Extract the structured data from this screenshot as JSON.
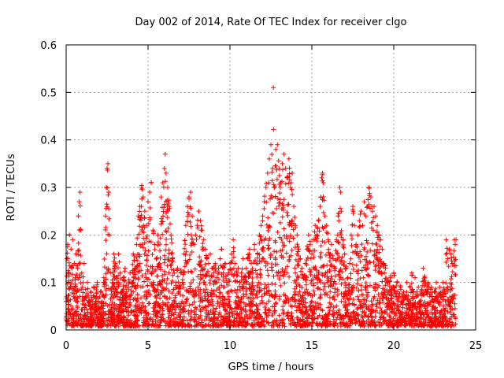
{
  "chart_data": {
    "type": "scatter",
    "title": "Day 002 of 2014, Rate Of TEC Index for receiver clgo",
    "xlabel": "GPS time / hours",
    "ylabel": "ROTI / TECUs",
    "xlim": [
      0,
      25
    ],
    "ylim": [
      0,
      0.6
    ],
    "x_ticks": [
      0,
      5,
      10,
      15,
      20,
      25
    ],
    "x_tick_labels": [
      "0",
      "5",
      "10",
      "15",
      "20",
      "25"
    ],
    "y_ticks": [
      0,
      0.1,
      0.2,
      0.3,
      0.4,
      0.5,
      0.6
    ],
    "y_tick_labels": [
      "0",
      "0.1",
      "0.2",
      "0.3",
      "0.4",
      "0.5",
      "0.6"
    ],
    "grid": true,
    "marker": "+",
    "color": "#ff0000",
    "series": [
      {
        "name": "ROTI",
        "points": [
          [
            0.0,
            0.06
          ],
          [
            0.05,
            0.15
          ],
          [
            0.1,
            0.18
          ],
          [
            0.15,
            0.12
          ],
          [
            0.2,
            0.2
          ],
          [
            0.25,
            0.09
          ],
          [
            0.3,
            0.17
          ],
          [
            0.35,
            0.13
          ],
          [
            0.4,
            0.19
          ],
          [
            0.45,
            0.07
          ],
          [
            0.5,
            0.14
          ],
          [
            0.55,
            0.11
          ],
          [
            0.6,
            0.16
          ],
          [
            0.65,
            0.08
          ],
          [
            0.7,
            0.13
          ],
          [
            0.75,
            0.24
          ],
          [
            0.8,
            0.27
          ],
          [
            0.85,
            0.29
          ],
          [
            0.9,
            0.21
          ],
          [
            0.95,
            0.12
          ],
          [
            1.0,
            0.09
          ],
          [
            1.1,
            0.14
          ],
          [
            1.2,
            0.07
          ],
          [
            1.3,
            0.1
          ],
          [
            1.4,
            0.06
          ],
          [
            1.5,
            0.08
          ],
          [
            1.6,
            0.05
          ],
          [
            1.7,
            0.09
          ],
          [
            1.8,
            0.06
          ],
          [
            1.9,
            0.1
          ],
          [
            2.0,
            0.05
          ],
          [
            2.1,
            0.08
          ],
          [
            2.2,
            0.06
          ],
          [
            2.3,
            0.11
          ],
          [
            2.4,
            0.24
          ],
          [
            2.45,
            0.3
          ],
          [
            2.5,
            0.34
          ],
          [
            2.55,
            0.35
          ],
          [
            2.6,
            0.29
          ],
          [
            2.65,
            0.2
          ],
          [
            2.7,
            0.12
          ],
          [
            2.8,
            0.09
          ],
          [
            2.9,
            0.16
          ],
          [
            3.0,
            0.14
          ],
          [
            3.1,
            0.1
          ],
          [
            3.2,
            0.16
          ],
          [
            3.3,
            0.12
          ],
          [
            3.4,
            0.08
          ],
          [
            3.5,
            0.11
          ],
          [
            3.6,
            0.13
          ],
          [
            3.7,
            0.07
          ],
          [
            3.8,
            0.09
          ],
          [
            3.9,
            0.12
          ],
          [
            4.0,
            0.1
          ],
          [
            4.1,
            0.16
          ],
          [
            4.2,
            0.13
          ],
          [
            4.3,
            0.18
          ],
          [
            4.4,
            0.24
          ],
          [
            4.5,
            0.26
          ],
          [
            4.6,
            0.3
          ],
          [
            4.7,
            0.28
          ],
          [
            4.8,
            0.25
          ],
          [
            4.9,
            0.22
          ],
          [
            5.0,
            0.27
          ],
          [
            5.1,
            0.29
          ],
          [
            5.2,
            0.31
          ],
          [
            5.3,
            0.21
          ],
          [
            5.4,
            0.18
          ],
          [
            5.5,
            0.15
          ],
          [
            5.6,
            0.2
          ],
          [
            5.7,
            0.14
          ],
          [
            5.8,
            0.28
          ],
          [
            5.9,
            0.31
          ],
          [
            6.0,
            0.34
          ],
          [
            6.05,
            0.37
          ],
          [
            6.1,
            0.33
          ],
          [
            6.2,
            0.3
          ],
          [
            6.3,
            0.26
          ],
          [
            6.4,
            0.2
          ],
          [
            6.5,
            0.15
          ],
          [
            6.6,
            0.12
          ],
          [
            6.7,
            0.1
          ],
          [
            6.8,
            0.13
          ],
          [
            6.9,
            0.09
          ],
          [
            7.0,
            0.12
          ],
          [
            7.1,
            0.1
          ],
          [
            7.2,
            0.16
          ],
          [
            7.3,
            0.22
          ],
          [
            7.4,
            0.26
          ],
          [
            7.5,
            0.28
          ],
          [
            7.6,
            0.29
          ],
          [
            7.7,
            0.24
          ],
          [
            7.8,
            0.18
          ],
          [
            7.9,
            0.2
          ],
          [
            8.0,
            0.22
          ],
          [
            8.1,
            0.25
          ],
          [
            8.2,
            0.23
          ],
          [
            8.3,
            0.21
          ],
          [
            8.4,
            0.19
          ],
          [
            8.5,
            0.17
          ],
          [
            8.6,
            0.15
          ],
          [
            8.7,
            0.14
          ],
          [
            8.8,
            0.16
          ],
          [
            8.9,
            0.13
          ],
          [
            9.0,
            0.12
          ],
          [
            9.1,
            0.14
          ],
          [
            9.2,
            0.11
          ],
          [
            9.3,
            0.13
          ],
          [
            9.4,
            0.15
          ],
          [
            9.5,
            0.17
          ],
          [
            9.6,
            0.12
          ],
          [
            9.7,
            0.14
          ],
          [
            9.8,
            0.1
          ],
          [
            9.9,
            0.12
          ],
          [
            10.0,
            0.14
          ],
          [
            10.1,
            0.16
          ],
          [
            10.2,
            0.19
          ],
          [
            10.3,
            0.14
          ],
          [
            10.4,
            0.12
          ],
          [
            10.5,
            0.13
          ],
          [
            10.6,
            0.1
          ],
          [
            10.7,
            0.12
          ],
          [
            10.8,
            0.15
          ],
          [
            10.9,
            0.11
          ],
          [
            11.0,
            0.13
          ],
          [
            11.1,
            0.15
          ],
          [
            11.2,
            0.17
          ],
          [
            11.3,
            0.14
          ],
          [
            11.4,
            0.12
          ],
          [
            11.5,
            0.18
          ],
          [
            11.6,
            0.14
          ],
          [
            11.7,
            0.16
          ],
          [
            11.8,
            0.2
          ],
          [
            11.9,
            0.22
          ],
          [
            12.0,
            0.24
          ],
          [
            12.1,
            0.27
          ],
          [
            12.2,
            0.3
          ],
          [
            12.3,
            0.33
          ],
          [
            12.4,
            0.36
          ],
          [
            12.5,
            0.39
          ],
          [
            12.6,
            0.34
          ],
          [
            12.65,
            0.51
          ],
          [
            12.7,
            0.3
          ],
          [
            12.8,
            0.38
          ],
          [
            12.9,
            0.39
          ],
          [
            13.0,
            0.34
          ],
          [
            13.1,
            0.31
          ],
          [
            13.2,
            0.35
          ],
          [
            13.3,
            0.37
          ],
          [
            13.4,
            0.34
          ],
          [
            13.5,
            0.32
          ],
          [
            13.6,
            0.36
          ],
          [
            13.7,
            0.3
          ],
          [
            13.8,
            0.33
          ],
          [
            13.9,
            0.26
          ],
          [
            14.0,
            0.22
          ],
          [
            14.1,
            0.2
          ],
          [
            14.2,
            0.17
          ],
          [
            14.3,
            0.15
          ],
          [
            14.4,
            0.13
          ],
          [
            14.5,
            0.11
          ],
          [
            14.6,
            0.14
          ],
          [
            14.7,
            0.17
          ],
          [
            14.8,
            0.2
          ],
          [
            14.9,
            0.18
          ],
          [
            15.0,
            0.16
          ],
          [
            15.1,
            0.19
          ],
          [
            15.2,
            0.22
          ],
          [
            15.3,
            0.2
          ],
          [
            15.4,
            0.23
          ],
          [
            15.5,
            0.26
          ],
          [
            15.6,
            0.32
          ],
          [
            15.65,
            0.33
          ],
          [
            15.7,
            0.31
          ],
          [
            15.8,
            0.24
          ],
          [
            15.9,
            0.22
          ],
          [
            16.0,
            0.19
          ],
          [
            16.1,
            0.16
          ],
          [
            16.2,
            0.18
          ],
          [
            16.3,
            0.15
          ],
          [
            16.4,
            0.13
          ],
          [
            16.5,
            0.19
          ],
          [
            16.6,
            0.24
          ],
          [
            16.7,
            0.3
          ],
          [
            16.75,
            0.29
          ],
          [
            16.8,
            0.25
          ],
          [
            16.9,
            0.19
          ],
          [
            17.0,
            0.16
          ],
          [
            17.1,
            0.13
          ],
          [
            17.2,
            0.11
          ],
          [
            17.3,
            0.14
          ],
          [
            17.4,
            0.2
          ],
          [
            17.5,
            0.26
          ],
          [
            17.6,
            0.22
          ],
          [
            17.7,
            0.18
          ],
          [
            17.8,
            0.2
          ],
          [
            17.9,
            0.23
          ],
          [
            18.0,
            0.25
          ],
          [
            18.1,
            0.22
          ],
          [
            18.2,
            0.27
          ],
          [
            18.3,
            0.24
          ],
          [
            18.4,
            0.26
          ],
          [
            18.5,
            0.3
          ],
          [
            18.6,
            0.28
          ],
          [
            18.7,
            0.25
          ],
          [
            18.8,
            0.26
          ],
          [
            18.9,
            0.24
          ],
          [
            19.0,
            0.22
          ],
          [
            19.1,
            0.2
          ],
          [
            19.2,
            0.19
          ],
          [
            19.3,
            0.17
          ],
          [
            19.4,
            0.14
          ],
          [
            19.5,
            0.13
          ],
          [
            19.6,
            0.1
          ],
          [
            19.7,
            0.08
          ],
          [
            19.8,
            0.11
          ],
          [
            19.9,
            0.09
          ],
          [
            20.0,
            0.12
          ],
          [
            20.1,
            0.08
          ],
          [
            20.2,
            0.1
          ],
          [
            20.3,
            0.07
          ],
          [
            20.4,
            0.09
          ],
          [
            20.5,
            0.06
          ],
          [
            20.6,
            0.08
          ],
          [
            20.7,
            0.07
          ],
          [
            20.8,
            0.1
          ],
          [
            20.9,
            0.06
          ],
          [
            21.0,
            0.09
          ],
          [
            21.1,
            0.12
          ],
          [
            21.2,
            0.08
          ],
          [
            21.3,
            0.11
          ],
          [
            21.4,
            0.07
          ],
          [
            21.5,
            0.09
          ],
          [
            21.6,
            0.06
          ],
          [
            21.7,
            0.08
          ],
          [
            21.8,
            0.13
          ],
          [
            21.9,
            0.11
          ],
          [
            22.0,
            0.08
          ],
          [
            22.1,
            0.1
          ],
          [
            22.2,
            0.07
          ],
          [
            22.3,
            0.09
          ],
          [
            22.4,
            0.06
          ],
          [
            22.5,
            0.08
          ],
          [
            22.6,
            0.1
          ],
          [
            22.7,
            0.06
          ],
          [
            22.8,
            0.09
          ],
          [
            22.9,
            0.07
          ],
          [
            23.0,
            0.1
          ],
          [
            23.1,
            0.08
          ],
          [
            23.2,
            0.19
          ],
          [
            23.3,
            0.15
          ],
          [
            23.4,
            0.17
          ],
          [
            23.5,
            0.16
          ],
          [
            23.6,
            0.14
          ],
          [
            23.7,
            0.19
          ],
          [
            23.75,
            0.18
          ],
          [
            23.8,
            0.19
          ]
        ]
      }
    ]
  }
}
